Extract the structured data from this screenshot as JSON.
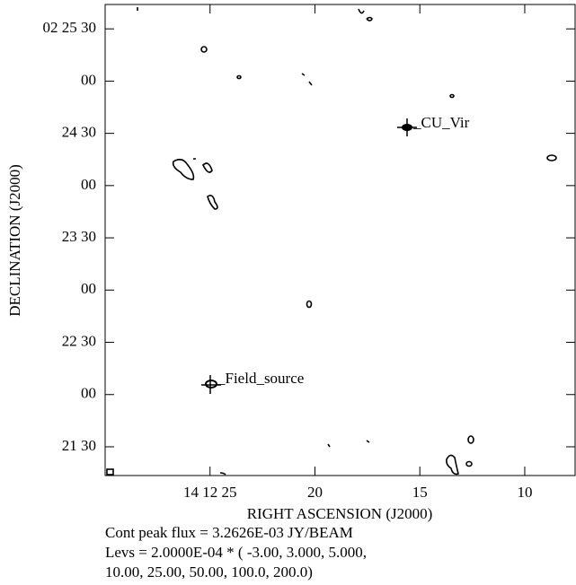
{
  "chart_data": {
    "type": "contour",
    "xlabel": "RIGHT ASCENSION (J2000)",
    "ylabel": "DECLINATION (J2000)",
    "xlim": [
      30,
      7.6
    ],
    "xticks": [
      {
        "value": 25,
        "label": "14 12 25"
      },
      20,
      15,
      10
    ],
    "ylim": [
      1273.5,
      1544
    ],
    "yticks": [
      {
        "value": 1530,
        "label": "02 25 30"
      },
      {
        "value": 1500,
        "label": "00"
      },
      {
        "value": 1470,
        "label": "24 30"
      },
      {
        "value": 1440,
        "label": "00"
      },
      {
        "value": 1410,
        "label": "23 30"
      },
      {
        "value": 1380,
        "label": "00"
      },
      {
        "value": 1350,
        "label": "22 30"
      },
      {
        "value": 1320,
        "label": "00"
      },
      {
        "value": 1290,
        "label": "21 30"
      }
    ],
    "annotations": [
      "_CU_Vir",
      "_Field_source"
    ],
    "notes": [
      "Cont peak flux =  3.2626E-03 JY/BEAM",
      "Levs = 2.0000E-04 * (  -3.00, 3.000, 5.000,",
      " 10.00, 25.00, 50.00, 100.0, 200.0)"
    ]
  }
}
